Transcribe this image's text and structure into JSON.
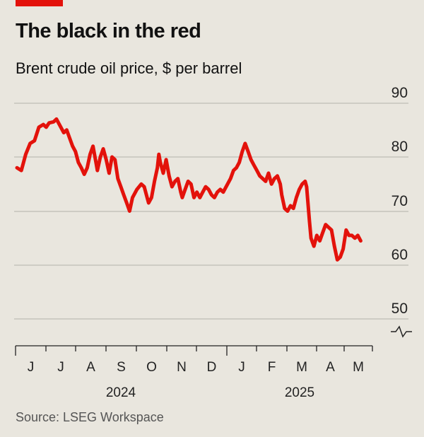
{
  "header": {
    "title": "The black in the red",
    "subtitle": "Brent crude oil price, $ per barrel"
  },
  "footer": {
    "source": "Source: LSEG Workspace"
  },
  "colors": {
    "line": "#e3120b",
    "accent_bar": "#e3120b",
    "background": "#e9e6de",
    "grid": "#bfbcb4"
  },
  "chart_data": {
    "type": "line",
    "title": "The black in the red",
    "subtitle": "Brent crude oil price, $ per barrel",
    "y_axis": {
      "min": 50,
      "max": 90,
      "ticks": [
        90,
        80,
        70,
        60,
        50
      ],
      "position": "right",
      "broken_axis": true
    },
    "x_axis": {
      "months": [
        "J",
        "J",
        "A",
        "S",
        "O",
        "N",
        "D",
        "J",
        "F",
        "M",
        "A",
        "M"
      ],
      "years": [
        "2024",
        "2025"
      ]
    },
    "grid": true,
    "series": [
      {
        "values": [
          [
            0,
            78
          ],
          [
            0.15,
            77.5
          ],
          [
            0.3,
            80.5
          ],
          [
            0.45,
            82.5
          ],
          [
            0.6,
            83
          ],
          [
            0.75,
            85.5
          ],
          [
            0.9,
            86
          ],
          [
            1.0,
            85.5
          ],
          [
            1.1,
            86.3
          ],
          [
            1.25,
            86.5
          ],
          [
            1.35,
            87
          ],
          [
            1.5,
            85.5
          ],
          [
            1.6,
            84.5
          ],
          [
            1.7,
            85
          ],
          [
            1.8,
            83.5
          ],
          [
            1.9,
            82
          ],
          [
            2.0,
            81
          ],
          [
            2.1,
            79
          ],
          [
            2.2,
            78
          ],
          [
            2.3,
            76.8
          ],
          [
            2.4,
            78
          ],
          [
            2.5,
            80.5
          ],
          [
            2.6,
            82
          ],
          [
            2.7,
            79
          ],
          [
            2.75,
            77.5
          ],
          [
            2.85,
            80
          ],
          [
            2.95,
            81.5
          ],
          [
            3.05,
            79.5
          ],
          [
            3.15,
            77
          ],
          [
            3.25,
            80
          ],
          [
            3.35,
            79.5
          ],
          [
            3.45,
            76
          ],
          [
            3.55,
            74.5
          ],
          [
            3.65,
            73
          ],
          [
            3.75,
            71.5
          ],
          [
            3.85,
            70
          ],
          [
            3.95,
            72.5
          ],
          [
            4.1,
            74
          ],
          [
            4.25,
            75
          ],
          [
            4.35,
            74.5
          ],
          [
            4.45,
            72.5
          ],
          [
            4.5,
            71.5
          ],
          [
            4.6,
            72.5
          ],
          [
            4.7,
            75.5
          ],
          [
            4.8,
            78
          ],
          [
            4.85,
            80.5
          ],
          [
            4.9,
            79
          ],
          [
            5.0,
            77
          ],
          [
            5.1,
            79.5
          ],
          [
            5.2,
            76.5
          ],
          [
            5.3,
            74.5
          ],
          [
            5.4,
            75.5
          ],
          [
            5.5,
            76
          ],
          [
            5.6,
            73.5
          ],
          [
            5.65,
            72.5
          ],
          [
            5.75,
            74
          ],
          [
            5.85,
            75.5
          ],
          [
            5.95,
            75
          ],
          [
            6.05,
            72.5
          ],
          [
            6.15,
            73.5
          ],
          [
            6.25,
            72.5
          ],
          [
            6.35,
            73.5
          ],
          [
            6.45,
            74.5
          ],
          [
            6.55,
            74
          ],
          [
            6.65,
            73
          ],
          [
            6.75,
            72.5
          ],
          [
            6.85,
            73.5
          ],
          [
            6.95,
            74
          ],
          [
            7.05,
            73.5
          ],
          [
            7.15,
            74.5
          ],
          [
            7.3,
            76
          ],
          [
            7.4,
            77.5
          ],
          [
            7.5,
            78
          ],
          [
            7.6,
            79
          ],
          [
            7.7,
            81
          ],
          [
            7.8,
            82.5
          ],
          [
            7.9,
            81
          ],
          [
            8.0,
            79.5
          ],
          [
            8.1,
            78.5
          ],
          [
            8.2,
            77.5
          ],
          [
            8.3,
            76.5
          ],
          [
            8.4,
            76
          ],
          [
            8.5,
            75.5
          ],
          [
            8.6,
            77
          ],
          [
            8.7,
            75
          ],
          [
            8.8,
            76
          ],
          [
            8.9,
            76.5
          ],
          [
            9.0,
            75
          ],
          [
            9.05,
            73
          ],
          [
            9.15,
            70.5
          ],
          [
            9.25,
            70
          ],
          [
            9.35,
            71
          ],
          [
            9.45,
            70.5
          ],
          [
            9.55,
            72.5
          ],
          [
            9.65,
            74
          ],
          [
            9.75,
            75
          ],
          [
            9.85,
            75.5
          ],
          [
            9.9,
            74.5
          ],
          [
            10.0,
            68
          ],
          [
            10.05,
            65
          ],
          [
            10.15,
            63.5
          ],
          [
            10.25,
            65.5
          ],
          [
            10.35,
            64.5
          ],
          [
            10.45,
            66
          ],
          [
            10.55,
            67.5
          ],
          [
            10.65,
            67
          ],
          [
            10.75,
            66.5
          ],
          [
            10.85,
            63.5
          ],
          [
            10.95,
            61
          ],
          [
            11.05,
            61.5
          ],
          [
            11.15,
            63
          ],
          [
            11.25,
            66.5
          ],
          [
            11.35,
            65.5
          ],
          [
            11.45,
            65.5
          ],
          [
            11.55,
            65
          ],
          [
            11.65,
            65.5
          ],
          [
            11.75,
            64.5
          ]
        ]
      }
    ]
  }
}
